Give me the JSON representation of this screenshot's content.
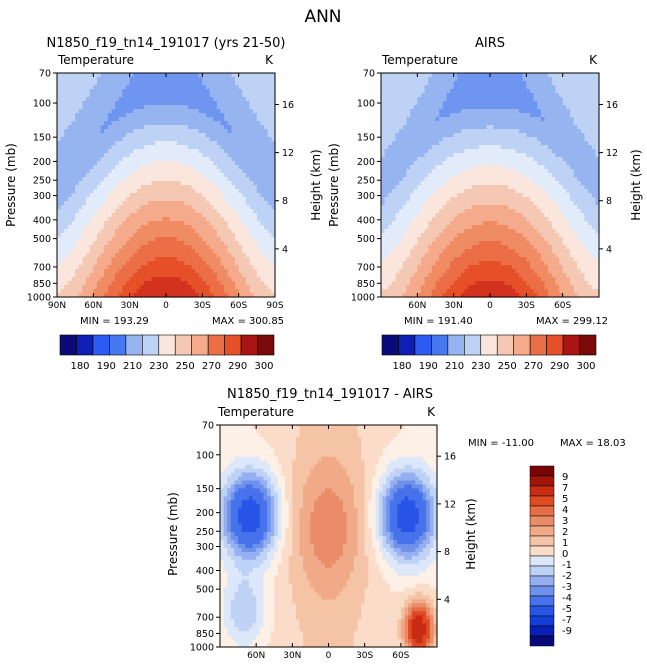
{
  "figure": {
    "title": "ANN"
  },
  "colors": {
    "abs_scale": [
      "#0a0a78",
      "#0f1eb4",
      "#1e3cdc",
      "#2d5af0",
      "#4678f0",
      "#6e96f0",
      "#96b4f0",
      "#bed2f5",
      "#e1ebfa",
      "#fae6dc",
      "#f5c8b4",
      "#f5aa8c",
      "#f08c64",
      "#eb6e46",
      "#e65028",
      "#d2321e",
      "#aa1414",
      "#780a0a"
    ],
    "diff_scale": [
      "#050a78",
      "#0a1eb4",
      "#143cd7",
      "#2855e6",
      "#4673eb",
      "#6e91eb",
      "#96aff0",
      "#bed2f5",
      "#dce8fa",
      "#fdf0e6",
      "#fadcc8",
      "#f5c3a5",
      "#f0aa87",
      "#eb8c69",
      "#e66e46",
      "#e14b23",
      "#c82d14",
      "#a0140a",
      "#780505"
    ]
  },
  "chart_data": [
    {
      "id": "model",
      "type": "heatmap",
      "subtitle": "N1850_f19_tn14_191017 (yrs 21-50)",
      "variable": "Temperature",
      "units": "K",
      "xlabel": "",
      "ylabel": "Pressure (mb)",
      "right_label": "Height (km)",
      "x_ticks": [
        "90N",
        "60N",
        "30N",
        "0",
        "30S",
        "60S",
        "90S"
      ],
      "x_tick_values": [
        90,
        60,
        30,
        0,
        -30,
        -60,
        -90
      ],
      "xlim": [
        90,
        -90
      ],
      "p_ticks": [
        70,
        100,
        150,
        200,
        250,
        300,
        400,
        500,
        700,
        850,
        1000
      ],
      "ylim_mb": [
        1000,
        70
      ],
      "height_ticks": [
        4,
        8,
        12,
        16
      ],
      "stats": {
        "min": "MIN = 193.29",
        "max": "MAX = 300.85"
      },
      "colorbar_labels": [
        "180",
        "190",
        "210",
        "230",
        "250",
        "270",
        "290",
        "300"
      ],
      "levels": [
        180,
        190,
        200,
        210,
        220,
        230,
        240,
        250,
        260,
        270,
        280,
        290,
        300
      ],
      "field": {
        "t_surface": 301,
        "t_pole": 242,
        "t_tropopause": 194,
        "t_stratosphere": 213
      }
    },
    {
      "id": "obs",
      "type": "heatmap",
      "subtitle": "AIRS",
      "variable": "Temperature",
      "units": "K",
      "xlabel": "",
      "ylabel": "Pressure (mb)",
      "right_label": "Height (km)",
      "x_ticks": [
        "60N",
        "30N",
        "0",
        "30S",
        "60S"
      ],
      "x_tick_values": [
        60,
        30,
        0,
        -30,
        -60
      ],
      "xlim": [
        90,
        -90
      ],
      "p_ticks": [
        70,
        100,
        150,
        200,
        250,
        300,
        400,
        500,
        700,
        850,
        1000
      ],
      "ylim_mb": [
        1000,
        70
      ],
      "height_ticks": [
        4,
        8,
        12,
        16
      ],
      "stats": {
        "min": "MIN = 191.40",
        "max": "MAX = 299.12"
      },
      "colorbar_labels": [
        "180",
        "190",
        "210",
        "230",
        "250",
        "270",
        "290",
        "300"
      ],
      "levels": [
        180,
        190,
        200,
        210,
        220,
        230,
        240,
        250,
        260,
        270,
        280,
        290,
        300
      ],
      "field": {
        "t_surface": 299,
        "t_pole": 242,
        "t_tropopause": 192,
        "t_stratosphere": 216
      }
    },
    {
      "id": "diff",
      "type": "heatmap",
      "subtitle": "N1850_f19_tn14_191017 - AIRS",
      "variable": "Temperature",
      "units": "K",
      "xlabel": "",
      "ylabel": "Pressure (mb)",
      "right_label": "Height (km)",
      "x_ticks": [
        "60N",
        "30N",
        "0",
        "30S",
        "60S"
      ],
      "x_tick_values": [
        60,
        30,
        0,
        -30,
        -60
      ],
      "xlim": [
        90,
        -90
      ],
      "p_ticks": [
        70,
        100,
        150,
        200,
        250,
        300,
        400,
        500,
        700,
        850,
        1000
      ],
      "ylim_mb": [
        1000,
        70
      ],
      "height_ticks": [
        4,
        8,
        12,
        16
      ],
      "stats": {
        "min": "MIN = -11.00",
        "max": "MAX =   18.03"
      },
      "colorbar_labels": [
        "9",
        "7",
        "5",
        "4",
        "3",
        "2",
        "1",
        "0",
        "-1",
        "-2",
        "-3",
        "-4",
        "-5",
        "-7",
        "-9"
      ],
      "levels": [
        -9,
        -7,
        -5,
        -4,
        -3,
        -2,
        -1,
        0,
        1,
        2,
        3,
        4,
        5,
        7,
        9
      ],
      "field": {
        "tropopause_bias": -8.5,
        "tropical_warm_bias": 2.5,
        "polar_surface_bias": 9
      }
    }
  ]
}
